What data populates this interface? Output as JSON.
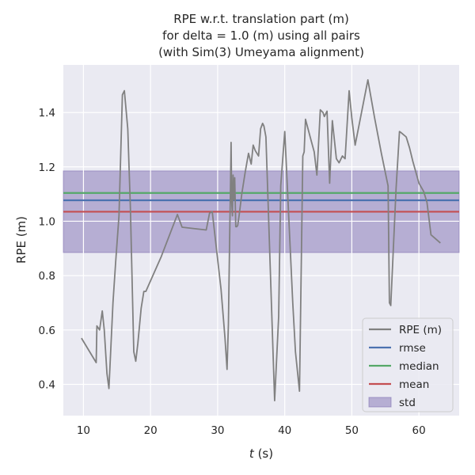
{
  "chart_data": {
    "type": "line",
    "title_lines": [
      "RPE w.r.t. translation part (m)",
      "for delta = 1.0 (m) using all pairs",
      "(with Sim(3) Umeyama alignment)"
    ],
    "xlabel_var": "t",
    "xlabel_unit": " (s)",
    "ylabel": "RPE (m)",
    "xlim": [
      7,
      66
    ],
    "ylim": [
      0.285,
      1.575
    ],
    "xticks": [
      10,
      20,
      30,
      40,
      50,
      60
    ],
    "yticks": [
      0.4,
      0.6,
      0.8,
      1.0,
      1.2,
      1.4
    ],
    "ytick_labels": [
      "0.4",
      "0.6",
      "0.8",
      "1.0",
      "1.2",
      "1.4"
    ],
    "grid": true,
    "legend_placement": "lower-right",
    "stats": {
      "rmse": 1.077,
      "median": 1.104,
      "mean": 1.035,
      "std_band": [
        0.885,
        1.185
      ]
    },
    "colors": {
      "background": "#eaeaf2",
      "rpe": "#808080",
      "rmse": "#4c72b0",
      "median": "#55a868",
      "mean": "#c44e52",
      "std": "#8172b3"
    },
    "legend": [
      {
        "key": "rpe",
        "label": "RPE (m)",
        "kind": "line"
      },
      {
        "key": "rmse",
        "label": "rmse",
        "kind": "line"
      },
      {
        "key": "median",
        "label": "median",
        "kind": "line"
      },
      {
        "key": "mean",
        "label": "mean",
        "kind": "line"
      },
      {
        "key": "std",
        "label": "std",
        "kind": "patch"
      }
    ],
    "series": [
      {
        "key": "rpe",
        "x": [
          9.7,
          11.9,
          12.0,
          12.4,
          12.8,
          13.1,
          13.5,
          13.8,
          14.4,
          14.8,
          15.3,
          15.8,
          16.1,
          16.6,
          17.0,
          17.5,
          17.8,
          18.1,
          18.6,
          19.0,
          19.3,
          21.6,
          24.0,
          24.7,
          28.3,
          28.8,
          29.2,
          30.5,
          31.1,
          31.4,
          31.6,
          31.8,
          31.9,
          32.0,
          32.1,
          32.2,
          32.3,
          32.45,
          32.55,
          32.7,
          32.85,
          33.0,
          33.2,
          33.6,
          34.1,
          34.6,
          35.0,
          35.3,
          35.6,
          36.1,
          36.4,
          36.7,
          36.9,
          37.2,
          38.5,
          39.1,
          39.4,
          40.0,
          41.2,
          41.6,
          42.2,
          42.7,
          42.9,
          43.1,
          43.9,
          44.4,
          44.8,
          45.3,
          45.7,
          45.9,
          46.3,
          46.7,
          47.1,
          47.7,
          48.1,
          48.6,
          49.0,
          49.6,
          50.0,
          50.5,
          52.4,
          53.4,
          54.4,
          55.4,
          55.6,
          55.8,
          56.6,
          57.1,
          57.4,
          58.1,
          58.6,
          59.1,
          60.0,
          60.7,
          61.2,
          61.8,
          63.2
        ],
        "y": [
          0.57,
          0.48,
          0.615,
          0.6,
          0.67,
          0.6,
          0.44,
          0.385,
          0.7,
          0.85,
          1.02,
          1.465,
          1.48,
          1.34,
          1.05,
          0.52,
          0.485,
          0.55,
          0.68,
          0.742,
          0.742,
          0.87,
          1.025,
          0.978,
          0.968,
          1.03,
          1.035,
          0.75,
          0.57,
          0.455,
          0.62,
          0.96,
          1.1,
          1.29,
          1.07,
          1.02,
          1.17,
          1.08,
          1.16,
          0.98,
          0.98,
          0.985,
          1.02,
          1.1,
          1.18,
          1.25,
          1.21,
          1.28,
          1.26,
          1.24,
          1.34,
          1.36,
          1.35,
          1.31,
          0.34,
          0.65,
          1.13,
          1.33,
          0.7,
          0.52,
          0.375,
          1.24,
          1.255,
          1.375,
          1.3,
          1.255,
          1.17,
          1.41,
          1.4,
          1.385,
          1.405,
          1.14,
          1.37,
          1.23,
          1.215,
          1.24,
          1.23,
          1.48,
          1.38,
          1.28,
          1.52,
          1.38,
          1.25,
          1.13,
          0.7,
          0.69,
          1.12,
          1.33,
          1.325,
          1.31,
          1.27,
          1.22,
          1.14,
          1.11,
          1.07,
          0.95,
          0.92
        ]
      }
    ]
  }
}
